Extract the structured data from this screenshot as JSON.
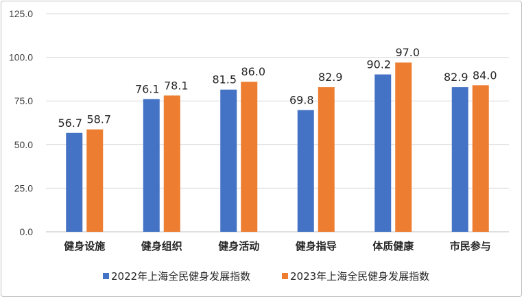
{
  "chart_data": {
    "type": "bar",
    "title": "",
    "xlabel": "",
    "ylabel": "",
    "categories": [
      "健身设施",
      "健身组织",
      "健身活动",
      "健身指导",
      "体质健康",
      "市民参与"
    ],
    "series": [
      {
        "name": "2022年上海全民健身发展指数",
        "values": [
          56.7,
          76.1,
          81.5,
          69.8,
          90.2,
          82.9
        ],
        "labels": [
          "56.7",
          "76.1",
          "81.5",
          "69.8",
          "90.2",
          "82.9"
        ]
      },
      {
        "name": "2023年上海全民健身发展指数",
        "values": [
          58.7,
          78.1,
          86.0,
          82.9,
          97.0,
          84.0
        ],
        "labels": [
          "58.7",
          "78.1",
          "86.0",
          "82.9",
          "97.0",
          "84.0"
        ]
      }
    ],
    "ylim": [
      0,
      125
    ],
    "yticks": [
      "0.0",
      "25.0",
      "50.0",
      "75.0",
      "100.0",
      "125.0"
    ],
    "grid": true,
    "legend": "bottom",
    "colors": [
      "#4472C4",
      "#ED7D31"
    ]
  }
}
